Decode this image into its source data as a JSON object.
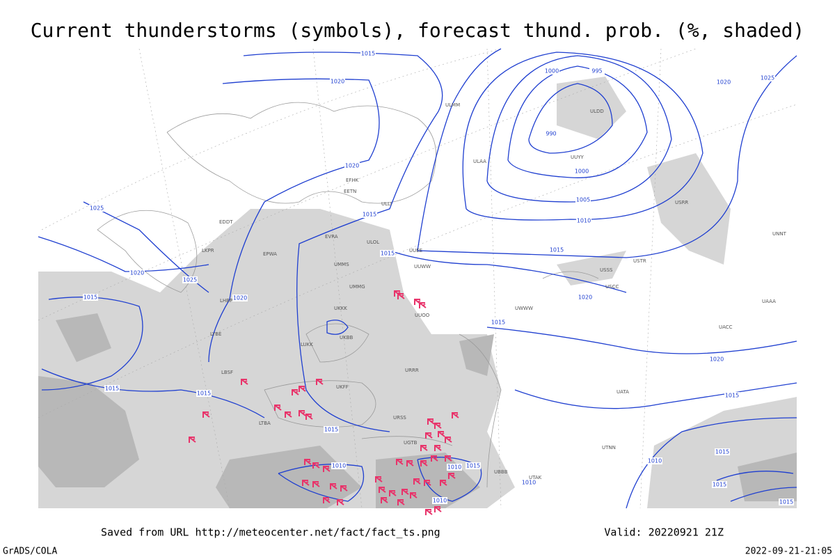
{
  "header": {
    "title": "Current thunderstorms (symbols), forecast thund. prob. (%, shaded)"
  },
  "footer": {
    "source": "Saved from URL http://meteocenter.net/fact/fact_ts.png",
    "valid": "Valid: 20220921 21Z",
    "software": "GrADS/COLA",
    "timestamp": "2022-09-21-21:05"
  },
  "isobar_labels": [
    "1015",
    "1020",
    "1000",
    "995",
    "990",
    "1000",
    "1005",
    "1010",
    "1015",
    "1020",
    "1015",
    "1015",
    "1025",
    "1020",
    "1025",
    "1020",
    "1015",
    "1015",
    "1015",
    "1015",
    "1020",
    "1015",
    "1020",
    "1015",
    "1020",
    "1025",
    "1010",
    "1010",
    "1015",
    "1010",
    "1010",
    "1010",
    "1015",
    "1015",
    "1015"
  ],
  "stations": [
    "ULOL",
    "ULLI",
    "UUEE",
    "UUWW",
    "UUOO",
    "UKKK",
    "UKBB",
    "UMMS",
    "EVRA",
    "EETN",
    "EFHK",
    "ULMM",
    "ULAA",
    "UUYY",
    "USSS",
    "UNNT",
    "UWWW",
    "URSS",
    "UGTB",
    "UTAK",
    "UBBB",
    "LTBA",
    "LBSF",
    "LYBE",
    "LHBP",
    "EPWA",
    "LKPR",
    "EDDT",
    "UACC",
    "UAAA",
    "USCC",
    "USTR",
    "UATA",
    "UTNN",
    "URRR",
    "UKFF",
    "LUKK",
    "UMMG",
    "ULDD",
    "USRR"
  ]
}
